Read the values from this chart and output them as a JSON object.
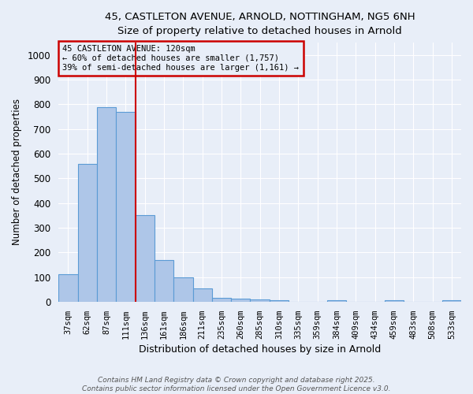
{
  "title_line1": "45, CASTLETON AVENUE, ARNOLD, NOTTINGHAM, NG5 6NH",
  "title_line2": "Size of property relative to detached houses in Arnold",
  "xlabel": "Distribution of detached houses by size in Arnold",
  "ylabel": "Number of detached properties",
  "categories": [
    "37sqm",
    "62sqm",
    "87sqm",
    "111sqm",
    "136sqm",
    "161sqm",
    "186sqm",
    "211sqm",
    "235sqm",
    "260sqm",
    "285sqm",
    "310sqm",
    "335sqm",
    "359sqm",
    "384sqm",
    "409sqm",
    "434sqm",
    "459sqm",
    "483sqm",
    "508sqm",
    "533sqm"
  ],
  "values": [
    110,
    560,
    790,
    770,
    350,
    170,
    100,
    53,
    17,
    12,
    8,
    5,
    0,
    0,
    5,
    0,
    0,
    5,
    0,
    0,
    5
  ],
  "bar_color": "#aec6e8",
  "bar_edge_color": "#5b9bd5",
  "red_line_x": 3.5,
  "annotation_title": "45 CASTLETON AVENUE: 120sqm",
  "annotation_line1": "← 60% of detached houses are smaller (1,757)",
  "annotation_line2": "39% of semi-detached houses are larger (1,161) →",
  "annotation_box_color": "#cc0000",
  "ylim": [
    0,
    1050
  ],
  "yticks": [
    0,
    100,
    200,
    300,
    400,
    500,
    600,
    700,
    800,
    900,
    1000
  ],
  "background_color": "#e8eef8",
  "grid_color": "#ffffff",
  "footer_line1": "Contains HM Land Registry data © Crown copyright and database right 2025.",
  "footer_line2": "Contains public sector information licensed under the Open Government Licence v3.0."
}
